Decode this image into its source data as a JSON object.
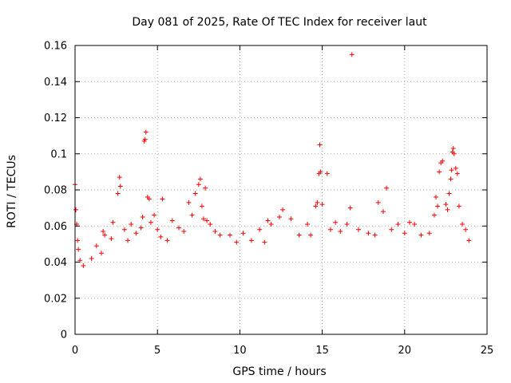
{
  "chart_data": {
    "type": "scatter",
    "title": "Day 081 of 2025, Rate Of TEC Index for receiver laut",
    "xlabel": "GPS time / hours",
    "ylabel": "ROTI / TECUs",
    "xlim": [
      0,
      25
    ],
    "ylim": [
      0,
      0.16
    ],
    "xticks": [
      0,
      5,
      10,
      15,
      20,
      25
    ],
    "xtick_labels": [
      "0",
      "5",
      "10",
      "15",
      "20",
      "25"
    ],
    "yticks": [
      0,
      0.02,
      0.04,
      0.06,
      0.08,
      0.1,
      0.12,
      0.14,
      0.16
    ],
    "ytick_labels": [
      "0",
      "0.02",
      "0.04",
      "0.06",
      "0.08",
      "0.1",
      "0.12",
      "0.14",
      "0.16"
    ],
    "grid": true,
    "marker": "+",
    "color": "#ff0000",
    "series": [
      {
        "name": "ROTI",
        "points": [
          [
            0.0,
            0.083
          ],
          [
            0.05,
            0.069
          ],
          [
            0.1,
            0.061
          ],
          [
            0.15,
            0.052
          ],
          [
            0.2,
            0.047
          ],
          [
            0.3,
            0.041
          ],
          [
            0.5,
            0.038
          ],
          [
            1.0,
            0.042
          ],
          [
            1.3,
            0.049
          ],
          [
            1.6,
            0.045
          ],
          [
            1.7,
            0.057
          ],
          [
            1.8,
            0.055
          ],
          [
            2.2,
            0.053
          ],
          [
            2.3,
            0.062
          ],
          [
            2.6,
            0.078
          ],
          [
            2.7,
            0.087
          ],
          [
            2.75,
            0.082
          ],
          [
            3.0,
            0.058
          ],
          [
            3.2,
            0.052
          ],
          [
            3.4,
            0.061
          ],
          [
            3.7,
            0.056
          ],
          [
            4.0,
            0.059
          ],
          [
            4.1,
            0.065
          ],
          [
            4.2,
            0.107
          ],
          [
            4.25,
            0.108
          ],
          [
            4.3,
            0.112
          ],
          [
            4.4,
            0.076
          ],
          [
            4.5,
            0.075
          ],
          [
            4.6,
            0.062
          ],
          [
            4.8,
            0.066
          ],
          [
            5.0,
            0.058
          ],
          [
            5.2,
            0.054
          ],
          [
            5.3,
            0.075
          ],
          [
            5.6,
            0.052
          ],
          [
            5.9,
            0.063
          ],
          [
            6.3,
            0.059
          ],
          [
            6.6,
            0.057
          ],
          [
            6.9,
            0.073
          ],
          [
            7.1,
            0.066
          ],
          [
            7.3,
            0.078
          ],
          [
            7.5,
            0.083
          ],
          [
            7.6,
            0.086
          ],
          [
            7.7,
            0.071
          ],
          [
            7.8,
            0.064
          ],
          [
            7.9,
            0.081
          ],
          [
            8.0,
            0.063
          ],
          [
            8.2,
            0.061
          ],
          [
            8.5,
            0.057
          ],
          [
            8.8,
            0.055
          ],
          [
            9.4,
            0.055
          ],
          [
            9.8,
            0.051
          ],
          [
            10.2,
            0.056
          ],
          [
            10.7,
            0.052
          ],
          [
            11.2,
            0.058
          ],
          [
            11.5,
            0.051
          ],
          [
            11.7,
            0.063
          ],
          [
            11.9,
            0.061
          ],
          [
            12.4,
            0.065
          ],
          [
            12.6,
            0.069
          ],
          [
            13.1,
            0.064
          ],
          [
            13.6,
            0.055
          ],
          [
            14.1,
            0.061
          ],
          [
            14.3,
            0.055
          ],
          [
            14.6,
            0.071
          ],
          [
            14.7,
            0.073
          ],
          [
            14.8,
            0.089
          ],
          [
            14.85,
            0.105
          ],
          [
            14.9,
            0.09
          ],
          [
            15.0,
            0.072
          ],
          [
            15.3,
            0.089
          ],
          [
            15.5,
            0.058
          ],
          [
            15.8,
            0.062
          ],
          [
            16.1,
            0.057
          ],
          [
            16.5,
            0.061
          ],
          [
            16.7,
            0.07
          ],
          [
            16.8,
            0.155
          ],
          [
            17.2,
            0.058
          ],
          [
            17.8,
            0.056
          ],
          [
            18.2,
            0.055
          ],
          [
            18.4,
            0.073
          ],
          [
            18.7,
            0.068
          ],
          [
            18.9,
            0.081
          ],
          [
            19.2,
            0.058
          ],
          [
            19.6,
            0.061
          ],
          [
            20.0,
            0.056
          ],
          [
            20.3,
            0.062
          ],
          [
            20.6,
            0.061
          ],
          [
            21.0,
            0.055
          ],
          [
            21.5,
            0.056
          ],
          [
            21.8,
            0.066
          ],
          [
            21.9,
            0.076
          ],
          [
            22.0,
            0.071
          ],
          [
            22.1,
            0.09
          ],
          [
            22.2,
            0.095
          ],
          [
            22.3,
            0.096
          ],
          [
            22.5,
            0.072
          ],
          [
            22.6,
            0.069
          ],
          [
            22.7,
            0.078
          ],
          [
            22.8,
            0.086
          ],
          [
            22.85,
            0.091
          ],
          [
            22.9,
            0.101
          ],
          [
            22.95,
            0.103
          ],
          [
            23.0,
            0.1
          ],
          [
            23.1,
            0.092
          ],
          [
            23.2,
            0.089
          ],
          [
            23.3,
            0.071
          ],
          [
            23.5,
            0.061
          ],
          [
            23.7,
            0.058
          ],
          [
            23.9,
            0.052
          ]
        ]
      }
    ]
  }
}
